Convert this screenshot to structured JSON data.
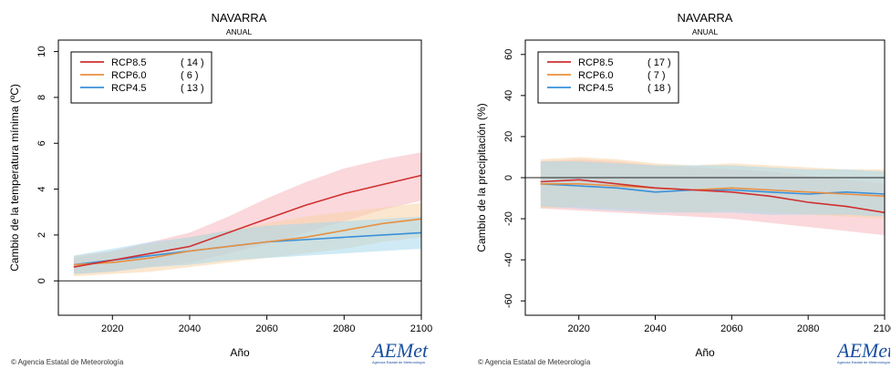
{
  "footer": {
    "copyright": "© Agencia Estatal de Meteorología"
  },
  "logo": {
    "text": "AEMet",
    "sub": "Agencia Estatal de Meteorología"
  },
  "colors": {
    "rcp85": "#d03030",
    "rcp60": "#e89040",
    "rcp45": "#3a90d8",
    "rcp85_band": "#f6b8c0",
    "rcp60_band": "#f8d4a8",
    "rcp45_band": "#a8d8ec"
  },
  "chart_data": [
    {
      "type": "line",
      "title": "NAVARRA",
      "subtitle": "ANUAL",
      "xlabel": "Año",
      "ylabel": "Cambio de la temperatura mínima (ºC)",
      "xlim": [
        2006,
        2100
      ],
      "ylim": [
        -1.5,
        10.5
      ],
      "xticks": [
        2020,
        2040,
        2060,
        2080,
        2100
      ],
      "yticks": [
        0,
        2,
        4,
        6,
        8,
        10
      ],
      "zero_line": true,
      "legend": "top-left",
      "legend_entries": [
        {
          "name": "RCP8.5",
          "count": "( 14 )"
        },
        {
          "name": "RCP6.0",
          "count": "(  6 )"
        },
        {
          "name": "RCP4.5",
          "count": "( 13 )"
        }
      ],
      "series": [
        {
          "name": "RCP8.5",
          "x": [
            2010,
            2020,
            2030,
            2040,
            2050,
            2060,
            2070,
            2080,
            2090,
            2100
          ],
          "mean": [
            0.6,
            0.9,
            1.2,
            1.5,
            2.1,
            2.7,
            3.3,
            3.8,
            4.2,
            4.6
          ],
          "lower": [
            0.3,
            0.4,
            0.6,
            0.8,
            1.2,
            1.6,
            2.1,
            2.6,
            3.1,
            3.5
          ],
          "upper": [
            1.0,
            1.3,
            1.7,
            2.1,
            2.8,
            3.6,
            4.3,
            4.9,
            5.3,
            5.6
          ]
        },
        {
          "name": "RCP6.0",
          "x": [
            2010,
            2020,
            2030,
            2040,
            2050,
            2060,
            2070,
            2080,
            2090,
            2100
          ],
          "mean": [
            0.7,
            0.8,
            1.0,
            1.3,
            1.5,
            1.7,
            1.9,
            2.2,
            2.5,
            2.7
          ],
          "lower": [
            0.2,
            0.3,
            0.4,
            0.6,
            0.8,
            1.0,
            1.2,
            1.4,
            1.7,
            1.9
          ],
          "upper": [
            1.1,
            1.3,
            1.6,
            1.9,
            2.2,
            2.5,
            2.8,
            3.0,
            3.2,
            3.4
          ]
        },
        {
          "name": "RCP4.5",
          "x": [
            2010,
            2020,
            2030,
            2040,
            2050,
            2060,
            2070,
            2080,
            2090,
            2100
          ],
          "mean": [
            0.7,
            0.9,
            1.1,
            1.3,
            1.5,
            1.7,
            1.8,
            1.9,
            2.0,
            2.1
          ],
          "lower": [
            0.3,
            0.4,
            0.6,
            0.7,
            0.9,
            1.0,
            1.1,
            1.2,
            1.3,
            1.4
          ],
          "upper": [
            1.1,
            1.4,
            1.7,
            1.9,
            2.2,
            2.4,
            2.5,
            2.6,
            2.7,
            2.8
          ]
        }
      ]
    },
    {
      "type": "line",
      "title": "NAVARRA",
      "subtitle": "ANUAL",
      "xlabel": "Año",
      "ylabel": "Cambio de la precipitación (%)",
      "xlim": [
        2006,
        2100
      ],
      "ylim": [
        -67,
        67
      ],
      "xticks": [
        2020,
        2040,
        2060,
        2080,
        2100
      ],
      "yticks": [
        -60,
        -40,
        -20,
        0,
        20,
        40,
        60
      ],
      "zero_line": true,
      "legend": "top-left",
      "legend_entries": [
        {
          "name": "RCP8.5",
          "count": "( 17 )"
        },
        {
          "name": "RCP6.0",
          "count": "(  7 )"
        },
        {
          "name": "RCP4.5",
          "count": "( 18 )"
        }
      ],
      "series": [
        {
          "name": "RCP8.5",
          "x": [
            2010,
            2020,
            2030,
            2040,
            2050,
            2060,
            2070,
            2080,
            2090,
            2100
          ],
          "mean": [
            -2,
            -1,
            -3,
            -5,
            -6,
            -7,
            -9,
            -12,
            -14,
            -17
          ],
          "lower": [
            -15,
            -16,
            -17,
            -18,
            -19,
            -20,
            -22,
            -24,
            -26,
            -28
          ],
          "upper": [
            8,
            9,
            8,
            6,
            5,
            4,
            3,
            1,
            -1,
            -3
          ]
        },
        {
          "name": "RCP6.0",
          "x": [
            2010,
            2020,
            2030,
            2040,
            2050,
            2060,
            2070,
            2080,
            2090,
            2100
          ],
          "mean": [
            -3,
            -3,
            -4,
            -5,
            -6,
            -5,
            -6,
            -7,
            -8,
            -9
          ],
          "lower": [
            -15,
            -14,
            -15,
            -16,
            -17,
            -16,
            -17,
            -18,
            -19,
            -20
          ],
          "upper": [
            9,
            10,
            9,
            7,
            6,
            7,
            6,
            5,
            4,
            4
          ]
        },
        {
          "name": "RCP4.5",
          "x": [
            2010,
            2020,
            2030,
            2040,
            2050,
            2060,
            2070,
            2080,
            2090,
            2100
          ],
          "mean": [
            -3,
            -4,
            -5,
            -7,
            -6,
            -6,
            -7,
            -8,
            -7,
            -8
          ],
          "lower": [
            -14,
            -15,
            -16,
            -17,
            -17,
            -17,
            -18,
            -18,
            -18,
            -19
          ],
          "upper": [
            8,
            8,
            7,
            6,
            6,
            6,
            5,
            4,
            4,
            3
          ]
        }
      ]
    }
  ]
}
